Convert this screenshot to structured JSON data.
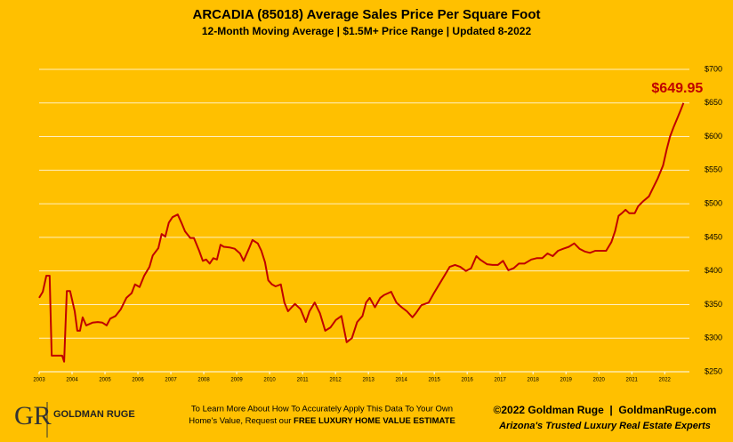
{
  "chart_data": {
    "type": "line",
    "title": "ARCADIA (85018) Average Sales Price Per Square Foot",
    "subtitle": "12-Month Moving Average | $1.5M+ Price Range | Updated 8-2022",
    "x": [
      2003.0,
      2003.11,
      2003.22,
      2003.32,
      2003.38,
      2003.7,
      2003.76,
      2003.84,
      2003.94,
      2004.08,
      2004.16,
      2004.24,
      2004.32,
      2004.43,
      2004.62,
      2004.78,
      2004.92,
      2005.05,
      2005.16,
      2005.32,
      2005.48,
      2005.65,
      2005.81,
      2005.91,
      2006.05,
      2006.19,
      2006.35,
      2006.45,
      2006.62,
      2006.72,
      2006.83,
      2006.94,
      2007.05,
      2007.21,
      2007.32,
      2007.43,
      2007.59,
      2007.7,
      2007.86,
      2007.97,
      2008.07,
      2008.18,
      2008.29,
      2008.4,
      2008.51,
      2008.61,
      2008.78,
      2008.94,
      2009.1,
      2009.21,
      2009.37,
      2009.48,
      2009.64,
      2009.75,
      2009.86,
      2009.96,
      2010.07,
      2010.18,
      2010.34,
      2010.45,
      2010.56,
      2010.67,
      2010.77,
      2010.94,
      2011.1,
      2011.21,
      2011.37,
      2011.53,
      2011.69,
      2011.85,
      2012.01,
      2012.18,
      2012.34,
      2012.5,
      2012.66,
      2012.82,
      2012.93,
      2013.04,
      2013.2,
      2013.36,
      2013.47,
      2013.69,
      2013.85,
      2014.01,
      2014.17,
      2014.34,
      2014.44,
      2014.61,
      2014.83,
      2014.99,
      2015.15,
      2015.31,
      2015.47,
      2015.63,
      2015.79,
      2015.96,
      2016.12,
      2016.28,
      2016.39,
      2016.6,
      2016.77,
      2016.93,
      2017.09,
      2017.25,
      2017.41,
      2017.57,
      2017.74,
      2017.95,
      2018.11,
      2018.28,
      2018.44,
      2018.6,
      2018.76,
      2018.92,
      2019.09,
      2019.25,
      2019.41,
      2019.57,
      2019.73,
      2019.89,
      2020.05,
      2020.22,
      2020.38,
      2020.49,
      2020.6,
      2020.7,
      2020.81,
      2020.92,
      2021.09,
      2021.19,
      2021.35,
      2021.52,
      2021.68,
      2021.79,
      2021.95,
      2022.06,
      2022.16,
      2022.27,
      2022.38,
      2022.49,
      2022.57
    ],
    "series": [
      {
        "name": "Average Sales Price Per Square Foot",
        "color": "#c00000",
        "values": [
          360,
          369,
          393,
          393,
          274,
          274,
          265,
          370,
          370,
          340,
          311,
          311,
          331,
          319,
          323,
          324,
          323,
          319,
          329,
          333,
          343,
          360,
          367,
          380,
          376,
          393,
          406,
          423,
          434,
          455,
          451,
          472,
          480,
          484,
          472,
          459,
          449,
          449,
          430,
          415,
          417,
          411,
          419,
          417,
          439,
          436,
          435,
          433,
          426,
          415,
          433,
          446,
          441,
          430,
          413,
          386,
          380,
          377,
          380,
          353,
          340,
          346,
          351,
          343,
          324,
          340,
          353,
          337,
          311,
          316,
          327,
          333,
          294,
          300,
          324,
          333,
          353,
          360,
          346,
          360,
          364,
          369,
          353,
          346,
          340,
          331,
          337,
          349,
          353,
          367,
          380,
          393,
          406,
          409,
          406,
          400,
          404,
          422,
          417,
          410,
          409,
          409,
          415,
          401,
          404,
          411,
          411,
          417,
          419,
          419,
          426,
          422,
          430,
          433,
          436,
          441,
          433,
          429,
          427,
          430,
          430,
          430,
          443,
          459,
          482,
          486,
          491,
          486,
          486,
          496,
          504,
          511,
          527,
          538,
          557,
          581,
          600,
          614,
          627,
          640,
          649.95
        ]
      }
    ],
    "annotations": [
      {
        "text": "$649.95",
        "x": 2022.57,
        "y": 649.95
      }
    ],
    "xlim": [
      2003,
      2022.75
    ],
    "xticks": [
      2003,
      2004,
      2005,
      2006,
      2007,
      2008,
      2009,
      2010,
      2011,
      2012,
      2013,
      2014,
      2015,
      2016,
      2017,
      2018,
      2019,
      2020,
      2021,
      2022
    ],
    "ylim": [
      250,
      700
    ],
    "yticks": [
      {
        "value": 250,
        "label": "$250"
      },
      {
        "value": 300,
        "label": "$300"
      },
      {
        "value": 350,
        "label": "$350"
      },
      {
        "value": 400,
        "label": "$400"
      },
      {
        "value": 450,
        "label": "$450"
      },
      {
        "value": 500,
        "label": "$500"
      },
      {
        "value": 550,
        "label": "$550"
      },
      {
        "value": 600,
        "label": "$600"
      },
      {
        "value": 650,
        "label": "$650"
      },
      {
        "value": 700,
        "label": "$700"
      }
    ],
    "grid": true
  },
  "footer": {
    "logo_initials": "GR",
    "logo_name": "GOLDMAN RUGE",
    "cta_line1": "To Learn More About How To Accurately Apply This Data To Your Own",
    "cta_line2": "Home's Value, Request our ",
    "cta_bold": "FREE LUXURY HOME VALUE ESTIMATE",
    "copyright": "©2022 Goldman Ruge  |  GoldmanRuge.com",
    "tagline": "Arizona's Trusted Luxury Real Estate Experts"
  }
}
